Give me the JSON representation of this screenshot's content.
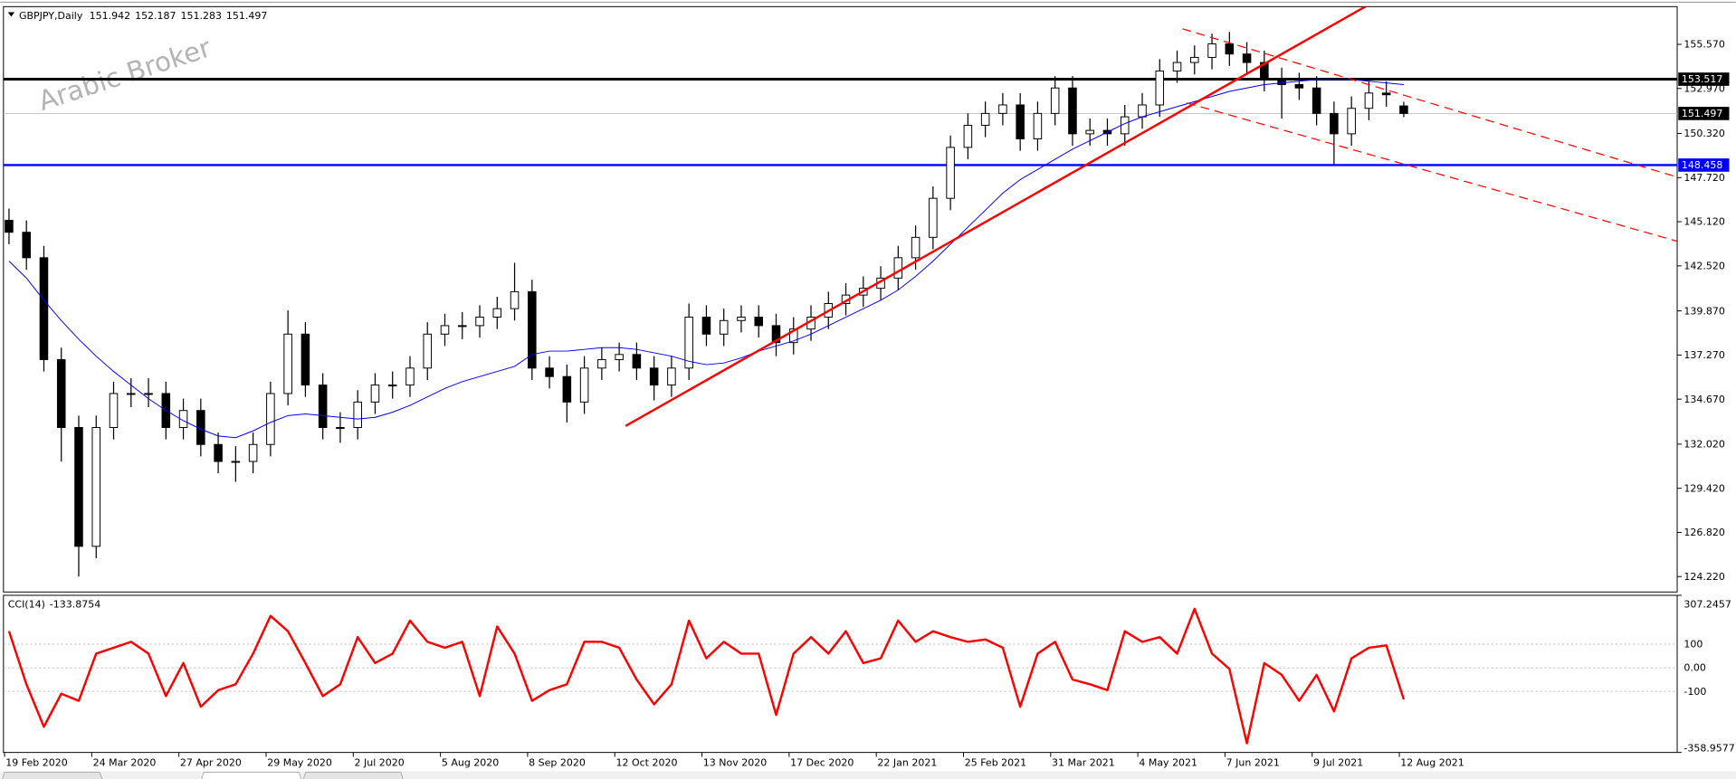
{
  "chart_data": [
    {
      "type": "candlestick",
      "symbol": "GBPJPY,Daily",
      "watermark": "Arabic Broker",
      "categories": [
        "19 Feb 2020",
        null,
        null,
        null,
        null,
        "24 Mar 2020",
        null,
        null,
        null,
        null,
        "27 Apr 2020",
        null,
        null,
        null,
        null,
        "29 May 2020",
        null,
        null,
        null,
        null,
        "2 Jul 2020",
        null,
        null,
        null,
        null,
        "5 Aug 2020",
        null,
        null,
        null,
        null,
        "8 Sep 2020",
        null,
        null,
        null,
        null,
        "12 Oct 2020",
        null,
        null,
        null,
        null,
        "13 Nov 2020",
        null,
        null,
        null,
        null,
        "17 Dec 2020",
        null,
        null,
        null,
        null,
        "22 Jan 2021",
        null,
        null,
        null,
        null,
        "25 Feb 2021",
        null,
        null,
        null,
        null,
        "31 Mar 2021",
        null,
        null,
        null,
        null,
        "4 May 2021",
        null,
        null,
        null,
        null,
        "7 Jun 2021",
        null,
        null,
        null,
        null,
        "9 Jul 2021",
        null,
        null,
        null,
        null,
        "12 Aug 2021"
      ],
      "open": [
        145.2,
        144.5,
        143,
        137,
        133,
        126,
        133,
        135,
        135,
        135,
        133,
        134,
        132,
        131,
        131,
        132,
        135,
        138.5,
        135.5,
        133,
        133,
        134.5,
        135.5,
        135.5,
        136.5,
        138.5,
        139,
        139,
        139.5,
        140,
        141,
        136.5,
        136,
        134.5,
        136.5,
        137,
        137.3,
        136.5,
        135.5,
        136.5,
        139.5,
        138.5,
        139.3,
        139.5,
        139,
        138,
        138.8,
        139.5,
        140.3,
        140.8,
        141.2,
        141.8,
        143,
        144.2,
        146.5,
        149.5,
        150.8,
        151.5,
        152,
        150,
        151.5,
        153,
        150.3,
        150.5,
        150.3,
        151.3,
        152,
        154,
        154.5,
        154.8,
        155.6,
        155,
        154.5,
        153.5,
        153.2,
        153,
        151.5,
        150.3,
        151.8,
        152.7,
        151.942
      ],
      "high": [
        145.9,
        145.2,
        143.7,
        137.7,
        133.7,
        133.7,
        135.7,
        135.9,
        135.9,
        135.7,
        134.7,
        134.7,
        132.7,
        131.9,
        132.7,
        135.7,
        139.9,
        139.2,
        136.2,
        133.9,
        135.2,
        136.2,
        136.3,
        137.2,
        139.2,
        139.7,
        139.8,
        140.2,
        140.7,
        142.7,
        141.7,
        137.2,
        136.7,
        137.2,
        137.7,
        138,
        138,
        137.2,
        137.2,
        140.3,
        140.2,
        140,
        140.2,
        140.2,
        139.7,
        139.5,
        140.2,
        141,
        141.5,
        141.9,
        142.5,
        143.7,
        144.9,
        147.2,
        150.2,
        151.5,
        152.2,
        152.7,
        152.7,
        152.2,
        153.7,
        153.7,
        151.2,
        151.2,
        152,
        152.7,
        154.7,
        155.2,
        155.5,
        156.2,
        156.3,
        155.7,
        155.2,
        154.2,
        153.9,
        153.7,
        152.2,
        152.5,
        153.4,
        153.4,
        152.187
      ],
      "low": [
        143.8,
        142.3,
        136.3,
        131,
        124.22,
        125.3,
        132.3,
        134.2,
        134.2,
        132.3,
        132.3,
        131.3,
        130.3,
        129.8,
        130.3,
        131.3,
        134.3,
        134.8,
        132.3,
        132.1,
        132.3,
        133.8,
        134.7,
        134.8,
        135.8,
        137.8,
        138.2,
        138.3,
        138.8,
        139.3,
        135.8,
        135.3,
        133.3,
        133.8,
        135.8,
        136.3,
        135.8,
        134.6,
        134.8,
        135.8,
        137.8,
        137.8,
        138.6,
        138.3,
        137.2,
        137.3,
        138.1,
        138.8,
        139.6,
        140.1,
        140.5,
        141.1,
        142.3,
        143.5,
        145.8,
        148.8,
        150.1,
        150.8,
        149.3,
        149.3,
        150.8,
        149.6,
        149.6,
        149.6,
        149.6,
        150.6,
        151.3,
        153.3,
        153.8,
        154.1,
        154.3,
        153.8,
        152.8,
        151.2,
        152.3,
        150.8,
        148.5,
        149.6,
        151.1,
        151.9,
        151.283
      ],
      "close": [
        144.5,
        143,
        137,
        133,
        126,
        133,
        135,
        135,
        135,
        133,
        134,
        132,
        131,
        131,
        132,
        135,
        138.5,
        135.5,
        133,
        133,
        134.5,
        135.5,
        135.5,
        136.5,
        138.5,
        139,
        139,
        139.5,
        140,
        141,
        136.5,
        136,
        134.5,
        136.5,
        137,
        137.3,
        136.5,
        135.5,
        136.5,
        139.5,
        138.5,
        139.3,
        139.5,
        139,
        138,
        138.8,
        139.5,
        140.3,
        140.8,
        141.2,
        141.8,
        143,
        144.2,
        146.5,
        149.5,
        150.8,
        151.5,
        152,
        150,
        151.5,
        153,
        150.3,
        150.5,
        150.3,
        151.3,
        152,
        154,
        154.5,
        154.8,
        155.6,
        155,
        154.5,
        153.5,
        153.2,
        153,
        151.5,
        150.3,
        151.8,
        152.7,
        152.6,
        151.497
      ],
      "ma": {
        "color": "#0000ff",
        "values": [
          142.8,
          141.8,
          140.5,
          139.3,
          138.2,
          137.2,
          136.3,
          135.5,
          134.7,
          134,
          133.4,
          132.9,
          132.5,
          132.4,
          132.8,
          133.3,
          133.7,
          133.8,
          133.7,
          133.6,
          133.5,
          133.6,
          133.9,
          134.3,
          134.8,
          135.3,
          135.7,
          136,
          136.3,
          136.6,
          137.3,
          137.5,
          137.5,
          137.6,
          137.7,
          137.7,
          137.6,
          137.4,
          137.2,
          136.9,
          136.7,
          136.8,
          137.1,
          137.5,
          137.8,
          138.1,
          138.5,
          139,
          139.5,
          140,
          140.5,
          141.1,
          141.9,
          142.8,
          143.8,
          144.8,
          145.8,
          146.8,
          147.6,
          148.2,
          148.8,
          149.4,
          149.9,
          150.4,
          150.9,
          151.3,
          151.6,
          151.9,
          152.2,
          152.5,
          152.8,
          153,
          153.2,
          153.3,
          153.4,
          153.5,
          153.5,
          153.5,
          153.4,
          153.3,
          153.2
        ]
      },
      "hlines": [
        {
          "value": 153.517,
          "color": "#000000"
        },
        {
          "value": 148.458,
          "color": "#0000ff"
        }
      ],
      "ylim": [
        123.31,
        157.79
      ],
      "yticks": [
        {
          "value": 155.57,
          "label": "155.570"
        },
        {
          "value": 152.97,
          "label": "152.970"
        },
        {
          "value": 150.32,
          "label": "150.320"
        },
        {
          "value": 147.72,
          "label": "147.720"
        },
        {
          "value": 145.12,
          "label": "145.120"
        },
        {
          "value": 142.52,
          "label": "142.520"
        },
        {
          "value": 139.87,
          "label": "139.870"
        },
        {
          "value": 137.27,
          "label": "137.270"
        },
        {
          "value": 134.67,
          "label": "134.670"
        },
        {
          "value": 132.02,
          "label": "132.020"
        },
        {
          "value": 129.42,
          "label": "129.420"
        },
        {
          "value": 126.82,
          "label": "126.820"
        },
        {
          "value": 124.22,
          "label": "124.220"
        }
      ]
    },
    {
      "type": "line",
      "title": "CCI(14)",
      "color": "#ff0000",
      "values": [
        155,
        -70,
        -250,
        -110,
        -140,
        60,
        85,
        110,
        60,
        -120,
        20,
        -165,
        -95,
        -70,
        60,
        220,
        155,
        20,
        -120,
        -70,
        130,
        20,
        60,
        200,
        110,
        85,
        110,
        -120,
        175,
        60,
        -140,
        -95,
        -70,
        110,
        110,
        85,
        -50,
        -155,
        -70,
        200,
        40,
        110,
        60,
        60,
        -200,
        60,
        130,
        60,
        155,
        20,
        40,
        200,
        110,
        155,
        130,
        110,
        120,
        85,
        -165,
        60,
        110,
        -50,
        -70,
        -95,
        155,
        110,
        130,
        60,
        250,
        60,
        -5,
        -320,
        20,
        -30,
        -140,
        -30,
        -185,
        40,
        85,
        95,
        -133.8754
      ],
      "ylim": [
        -358.9577,
        307.2457
      ],
      "yticks": [
        307.2457,
        100,
        {
          "value": 0,
          "label": "0.00"
        },
        -100,
        -358.9577
      ]
    }
  ]
}
